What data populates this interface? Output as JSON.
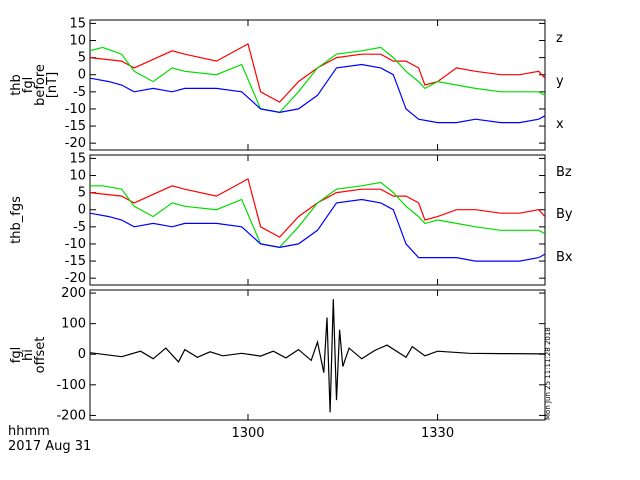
{
  "chart_data": [
    {
      "type": "line",
      "ylabel_lines": [
        "thb",
        "fgl",
        "before",
        "[nT]"
      ],
      "ylim": [
        -22,
        16
      ],
      "yticks": [
        15,
        10,
        5,
        0,
        -5,
        -10,
        -15,
        -20
      ],
      "series": [
        {
          "name": "z",
          "color": "#ff0000",
          "x": [
            1275,
            1280,
            1282,
            1288,
            1290,
            1295,
            1299,
            1300,
            1302,
            1305,
            1308,
            1311,
            1314,
            1318,
            1321,
            1323,
            1325,
            1327,
            1328,
            1330,
            1333,
            1336,
            1340,
            1343,
            1346,
            1347
          ],
          "y": [
            5,
            4,
            2,
            7,
            6,
            4,
            8,
            9,
            -5,
            -8,
            -2,
            2,
            5,
            6,
            6,
            4,
            4,
            2,
            -3,
            -2,
            2,
            1,
            0,
            0,
            1,
            -1
          ]
        },
        {
          "name": "y",
          "color": "#00dd00",
          "x": [
            1275,
            1277,
            1280,
            1282,
            1285,
            1288,
            1290,
            1295,
            1299,
            1302,
            1305,
            1308,
            1311,
            1314,
            1318,
            1321,
            1323,
            1325,
            1327,
            1328,
            1330,
            1333,
            1336,
            1340,
            1343,
            1346,
            1347
          ],
          "y": [
            7,
            8,
            6,
            1,
            -2,
            2,
            1,
            0,
            3,
            -10,
            -11,
            -5,
            2,
            6,
            7,
            8,
            5,
            1,
            -2,
            -4,
            -2,
            -3,
            -4,
            -5,
            -5,
            -5,
            -6
          ]
        },
        {
          "name": "x",
          "color": "#0000ff",
          "x": [
            1275,
            1278,
            1280,
            1282,
            1285,
            1288,
            1290,
            1295,
            1299,
            1302,
            1305,
            1308,
            1311,
            1314,
            1318,
            1321,
            1323,
            1324,
            1325,
            1327,
            1330,
            1333,
            1336,
            1340,
            1343,
            1346,
            1347
          ],
          "y": [
            -1,
            -2,
            -3,
            -5,
            -4,
            -5,
            -4,
            -4,
            -5,
            -10,
            -11,
            -10,
            -6,
            2,
            3,
            2,
            0,
            -5,
            -10,
            -13,
            -14,
            -14,
            -13,
            -14,
            -14,
            -13,
            -12
          ]
        }
      ]
    },
    {
      "type": "line",
      "ylabel_lines": [
        "thb_fgs"
      ],
      "ylim": [
        -22,
        16
      ],
      "yticks": [
        15,
        10,
        5,
        0,
        -5,
        -10,
        -15,
        -20
      ],
      "series": [
        {
          "name": "Bz",
          "color": "#ff0000",
          "x": [
            1275,
            1280,
            1282,
            1288,
            1290,
            1295,
            1299,
            1300,
            1302,
            1305,
            1308,
            1311,
            1314,
            1318,
            1321,
            1323,
            1325,
            1327,
            1328,
            1330,
            1333,
            1336,
            1340,
            1343,
            1346,
            1347
          ],
          "y": [
            5,
            4,
            2,
            7,
            6,
            4,
            8,
            9,
            -5,
            -8,
            -2,
            2,
            5,
            6,
            6,
            4,
            4,
            2,
            -3,
            -2,
            0,
            0,
            -1,
            -1,
            0,
            -2
          ]
        },
        {
          "name": "By",
          "color": "#00dd00",
          "x": [
            1275,
            1277,
            1280,
            1282,
            1285,
            1288,
            1290,
            1295,
            1299,
            1302,
            1305,
            1308,
            1311,
            1314,
            1318,
            1321,
            1323,
            1325,
            1327,
            1328,
            1330,
            1333,
            1336,
            1340,
            1343,
            1346,
            1347
          ],
          "y": [
            7,
            7,
            6,
            1,
            -2,
            2,
            1,
            0,
            3,
            -10,
            -11,
            -5,
            2,
            6,
            7,
            8,
            5,
            1,
            -2,
            -4,
            -3,
            -4,
            -5,
            -6,
            -6,
            -6,
            -7
          ]
        },
        {
          "name": "Bx",
          "color": "#0000ff",
          "x": [
            1275,
            1278,
            1280,
            1282,
            1285,
            1288,
            1290,
            1295,
            1299,
            1302,
            1305,
            1308,
            1311,
            1314,
            1318,
            1321,
            1323,
            1324,
            1325,
            1327,
            1330,
            1333,
            1336,
            1340,
            1343,
            1346,
            1347
          ],
          "y": [
            -1,
            -2,
            -3,
            -5,
            -4,
            -5,
            -4,
            -4,
            -5,
            -10,
            -11,
            -10,
            -6,
            2,
            3,
            2,
            0,
            -5,
            -10,
            -14,
            -14,
            -14,
            -15,
            -15,
            -15,
            -14,
            -13
          ]
        }
      ]
    },
    {
      "type": "line",
      "ylabel_lines": [
        "fgl",
        "hi",
        "offset"
      ],
      "ylim": [
        -215,
        210
      ],
      "yticks": [
        200,
        100,
        0,
        -100,
        -200
      ],
      "series": [
        {
          "name": "",
          "color": "#000000",
          "x": [
            1275,
            1280,
            1283,
            1285,
            1287,
            1289,
            1290,
            1292,
            1294,
            1296,
            1299,
            1302,
            1304,
            1306,
            1308,
            1310,
            1311,
            1312,
            1312.5,
            1313,
            1313.5,
            1314,
            1314.5,
            1315,
            1316,
            1318,
            1320,
            1322,
            1325,
            1326,
            1328,
            1330,
            1335,
            1340,
            1347
          ],
          "y": [
            5,
            -8,
            10,
            -15,
            20,
            -25,
            15,
            -10,
            8,
            -5,
            3,
            -6,
            10,
            -12,
            15,
            -20,
            40,
            -60,
            120,
            -190,
            180,
            -150,
            80,
            -40,
            20,
            -15,
            12,
            30,
            -10,
            25,
            -5,
            10,
            3,
            2,
            1
          ]
        }
      ]
    }
  ],
  "x_axis": {
    "xlim": [
      1275,
      1347
    ],
    "tick_values": [
      1300,
      1330
    ],
    "tick_labels": [
      "1300",
      "1330"
    ],
    "unit_label": "hhmm",
    "date_label": "2017 Aug 31"
  },
  "timestamp_text": "Mon Jun 25 11:11:28 2018"
}
